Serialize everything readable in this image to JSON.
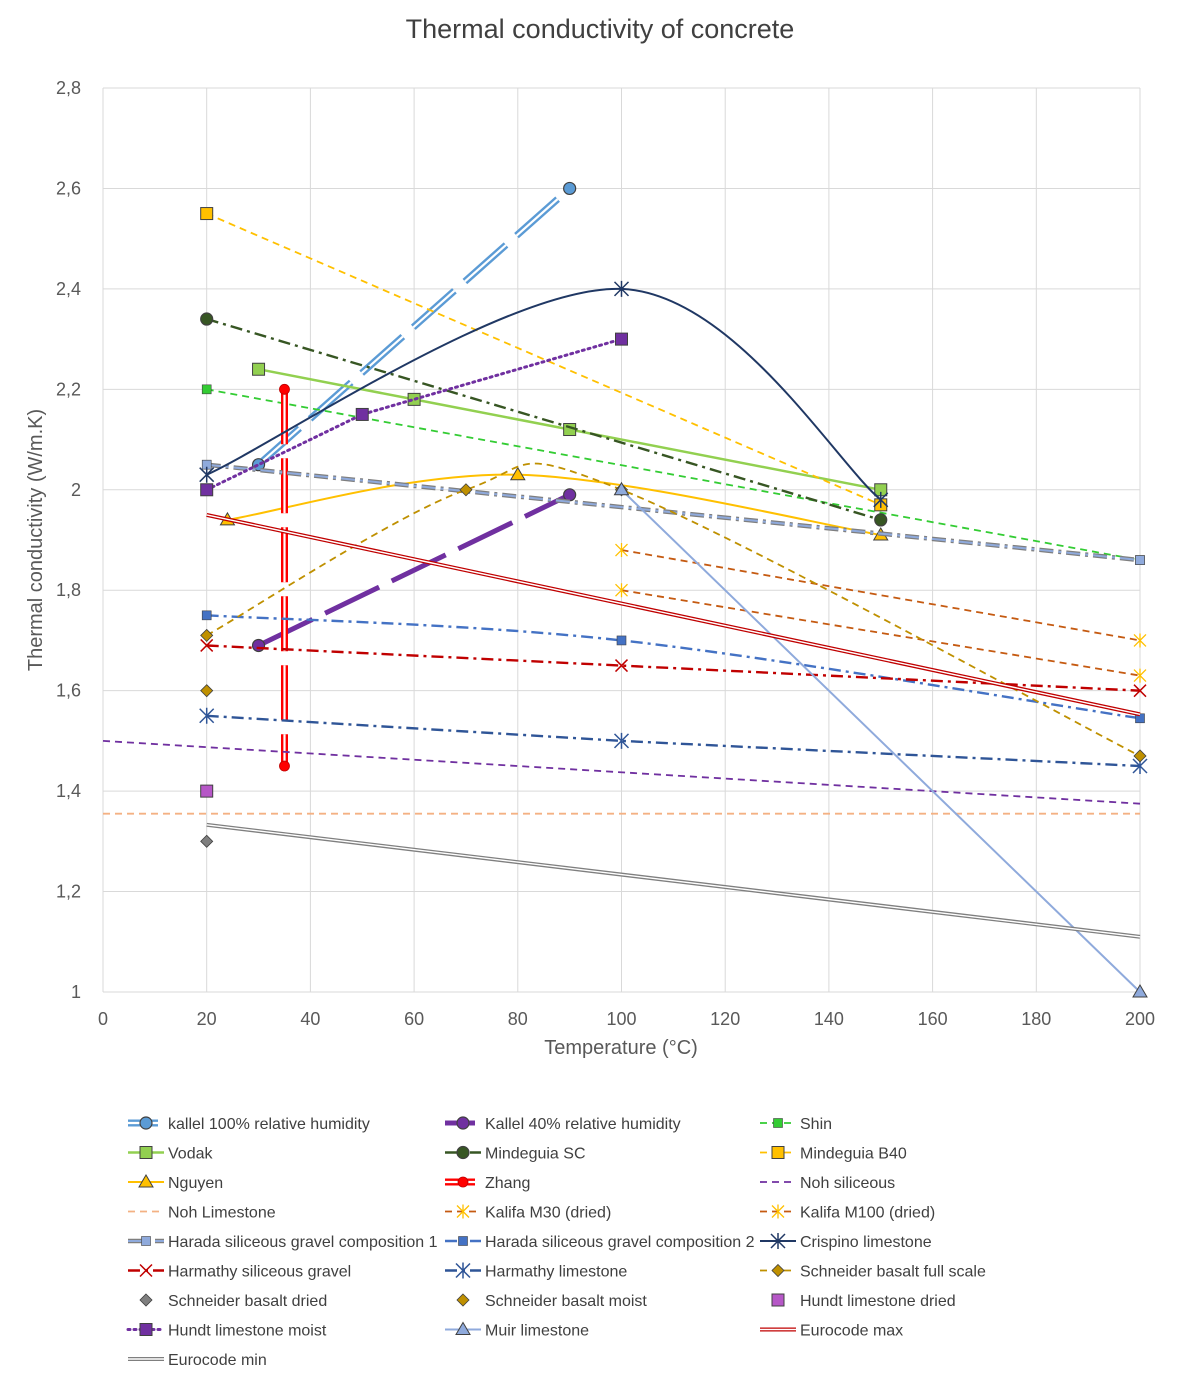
{
  "chart_data": {
    "type": "line",
    "title": "Thermal conductivity of concrete",
    "xlabel": "Temperature (°C)",
    "ylabel": "Thermal conductivity (W/m.K)",
    "xlim": [
      0,
      200
    ],
    "ylim": [
      1,
      2.8
    ],
    "x_ticks": [
      "0",
      "20",
      "40",
      "60",
      "80",
      "100",
      "120",
      "140",
      "160",
      "180",
      "200"
    ],
    "y_ticks": [
      "1",
      "1,2",
      "1,4",
      "1,6",
      "1,8",
      "2",
      "2,2",
      "2,4",
      "2,6",
      "2,8"
    ],
    "grid": true,
    "legend_position": "bottom",
    "series": [
      {
        "name": "kallel 100% relative humidity",
        "color": "#5b9bd5",
        "style": "double-dash",
        "marker": "circle",
        "x": [
          30,
          90
        ],
        "y": [
          2.05,
          2.6
        ]
      },
      {
        "name": "Kallel 40% relative humidity",
        "color": "#7030a0",
        "style": "long-dash",
        "marker": "circle",
        "x": [
          30,
          90
        ],
        "y": [
          1.69,
          1.99
        ]
      },
      {
        "name": "Shin",
        "color": "#33cc33",
        "style": "dash",
        "marker": "square-small",
        "x": [
          20,
          200
        ],
        "y": [
          2.2,
          1.86
        ]
      },
      {
        "name": "Vodak",
        "color": "#92d050",
        "style": "solid",
        "marker": "square",
        "x": [
          30,
          60,
          90,
          150
        ],
        "y": [
          2.24,
          2.18,
          2.12,
          2.0
        ]
      },
      {
        "name": "Mindeguia SC",
        "color": "#375623",
        "style": "dash-dot",
        "marker": "circle",
        "x": [
          20,
          150
        ],
        "y": [
          2.34,
          1.94
        ]
      },
      {
        "name": "Mindeguia B40",
        "color": "#ffc000",
        "style": "dash",
        "marker": "square",
        "x": [
          20,
          150
        ],
        "y": [
          2.55,
          1.97
        ]
      },
      {
        "name": "Nguyen",
        "color": "#ffc000",
        "style": "solid",
        "marker": "triangle",
        "x": [
          24,
          80,
          150
        ],
        "y": [
          1.94,
          2.03,
          1.91
        ]
      },
      {
        "name": "Zhang",
        "color": "#ff0000",
        "style": "double-dash",
        "marker": "circle-small",
        "x": [
          35,
          35
        ],
        "y": [
          2.2,
          1.45
        ]
      },
      {
        "name": "Noh siliceous",
        "color": "#7030a0",
        "style": "dash",
        "marker": "none",
        "x": [
          0,
          200
        ],
        "y": [
          1.5,
          1.375
        ]
      },
      {
        "name": "Noh Limestone",
        "color": "#f4b183",
        "style": "dash",
        "marker": "none",
        "x": [
          0,
          200
        ],
        "y": [
          1.355,
          1.355
        ]
      },
      {
        "name": "Kalifa M30 (dried)",
        "color": "#c55a11",
        "style": "dash",
        "marker": "star",
        "x": [
          100,
          200
        ],
        "y": [
          1.8,
          1.63
        ]
      },
      {
        "name": "Kalifa M100 (dried)",
        "color": "#c55a11",
        "style": "dash",
        "marker": "star",
        "x": [
          100,
          200
        ],
        "y": [
          1.88,
          1.7
        ]
      },
      {
        "name": "Harada siliceous gravel composition 1",
        "color": "#8faadc",
        "style": "double-dash-dot",
        "marker": "square-small",
        "x": [
          20,
          200
        ],
        "y": [
          2.05,
          1.86
        ]
      },
      {
        "name": "Harada siliceous gravel composition 2",
        "color": "#4472c4",
        "style": "dash-dot",
        "marker": "square-small",
        "x": [
          20,
          100,
          200
        ],
        "y": [
          1.75,
          1.7,
          1.545
        ]
      },
      {
        "name": "Crispino limestone",
        "color": "#203864",
        "style": "solid",
        "marker": "x-star",
        "x": [
          20,
          100,
          150
        ],
        "y": [
          2.03,
          2.4,
          1.98
        ]
      },
      {
        "name": "Harmathy siliceous gravel",
        "color": "#c00000",
        "style": "dash-dot",
        "marker": "x",
        "x": [
          20,
          100,
          200
        ],
        "y": [
          1.69,
          1.65,
          1.6
        ]
      },
      {
        "name": "Harmathy limestone",
        "color": "#2f5597",
        "style": "dash-dot",
        "marker": "x-star",
        "x": [
          20,
          100,
          200
        ],
        "y": [
          1.55,
          1.5,
          1.45
        ]
      },
      {
        "name": "Schneider basalt full scale",
        "color": "#bf9000",
        "style": "dash",
        "marker": "diamond",
        "x": [
          20,
          70,
          100,
          200
        ],
        "y": [
          1.71,
          2.0,
          2.0,
          1.47
        ]
      },
      {
        "name": "Schneider basalt dried",
        "color": "#7f7f7f",
        "style": "none",
        "marker": "diamond",
        "x": [
          20
        ],
        "y": [
          1.3
        ]
      },
      {
        "name": "Schneider basalt moist",
        "color": "#bf9000",
        "style": "none",
        "marker": "diamond",
        "x": [
          20
        ],
        "y": [
          1.6
        ]
      },
      {
        "name": "Hundt limestone dried",
        "color": "#b657c7",
        "style": "none",
        "marker": "square",
        "x": [
          20
        ],
        "y": [
          1.4
        ]
      },
      {
        "name": "Hundt limestone moist",
        "color": "#7030a0",
        "style": "dot",
        "marker": "square",
        "x": [
          20,
          50,
          100
        ],
        "y": [
          2.0,
          2.15,
          2.3
        ]
      },
      {
        "name": "Muir limestone",
        "color": "#8faadc",
        "style": "solid",
        "marker": "triangle",
        "x": [
          100,
          200
        ],
        "y": [
          2.0,
          1.0
        ]
      },
      {
        "name": "Eurocode max",
        "color": "#c00000",
        "style": "double",
        "marker": "none",
        "x": [
          20,
          200
        ],
        "y": [
          1.95,
          1.553
        ]
      },
      {
        "name": "Eurocode min",
        "color": "#7f7f7f",
        "style": "double",
        "marker": "none",
        "x": [
          20,
          200
        ],
        "y": [
          1.333,
          1.11
        ]
      }
    ]
  }
}
